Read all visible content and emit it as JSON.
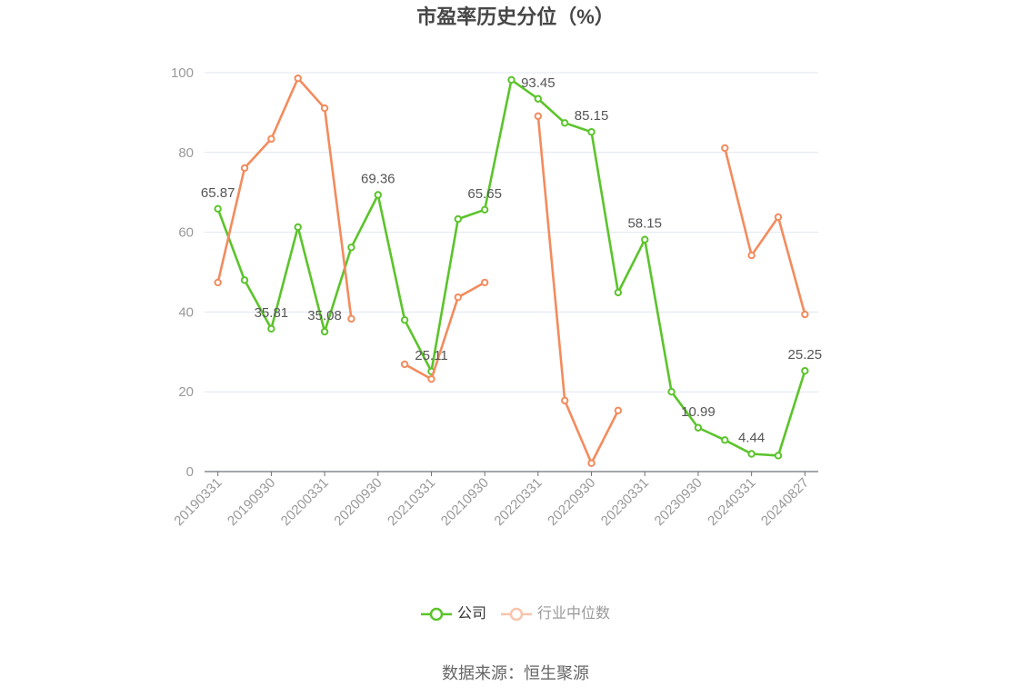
{
  "chart_data": {
    "type": "line",
    "title": "市盈率历史分位（%）",
    "categories": [
      "20190331",
      "",
      "20190930",
      "",
      "20200331",
      "",
      "20200930",
      "",
      "20210331",
      "",
      "20210930",
      "",
      "20220331",
      "",
      "20220930",
      "",
      "20230331",
      "",
      "20230930",
      "",
      "20240331",
      "",
      "20240827"
    ],
    "ylim": [
      0,
      100
    ],
    "y_ticks": [
      0,
      20,
      40,
      60,
      80,
      100
    ],
    "grid": true,
    "legend": "bottom",
    "series": [
      {
        "name": "公司",
        "color": "#5bc42b",
        "values": [
          65.87,
          48.0,
          35.81,
          61.3,
          35.08,
          56.2,
          69.36,
          38.0,
          25.11,
          63.3,
          65.65,
          98.2,
          93.45,
          87.4,
          85.15,
          44.9,
          58.15,
          20.0,
          10.99,
          7.9,
          4.44,
          4.0,
          25.25
        ],
        "data_labels": [
          "65.87",
          null,
          "35.81",
          null,
          "35.08",
          null,
          "69.36",
          null,
          "25.11",
          null,
          "65.65",
          null,
          "93.45",
          null,
          "85.15",
          null,
          "58.15",
          null,
          "10.99",
          null,
          "4.44",
          null,
          "25.25"
        ]
      },
      {
        "name": "行业中位数",
        "color": "#f38b5d",
        "values": [
          47.4,
          76.1,
          83.4,
          98.6,
          91.1,
          38.3,
          null,
          26.9,
          23.2,
          43.7,
          47.4,
          null,
          89.1,
          17.8,
          2.1,
          15.3,
          null,
          null,
          null,
          81.1,
          54.2,
          63.8,
          39.4
        ]
      }
    ]
  },
  "source": "数据来源：恒生聚源"
}
